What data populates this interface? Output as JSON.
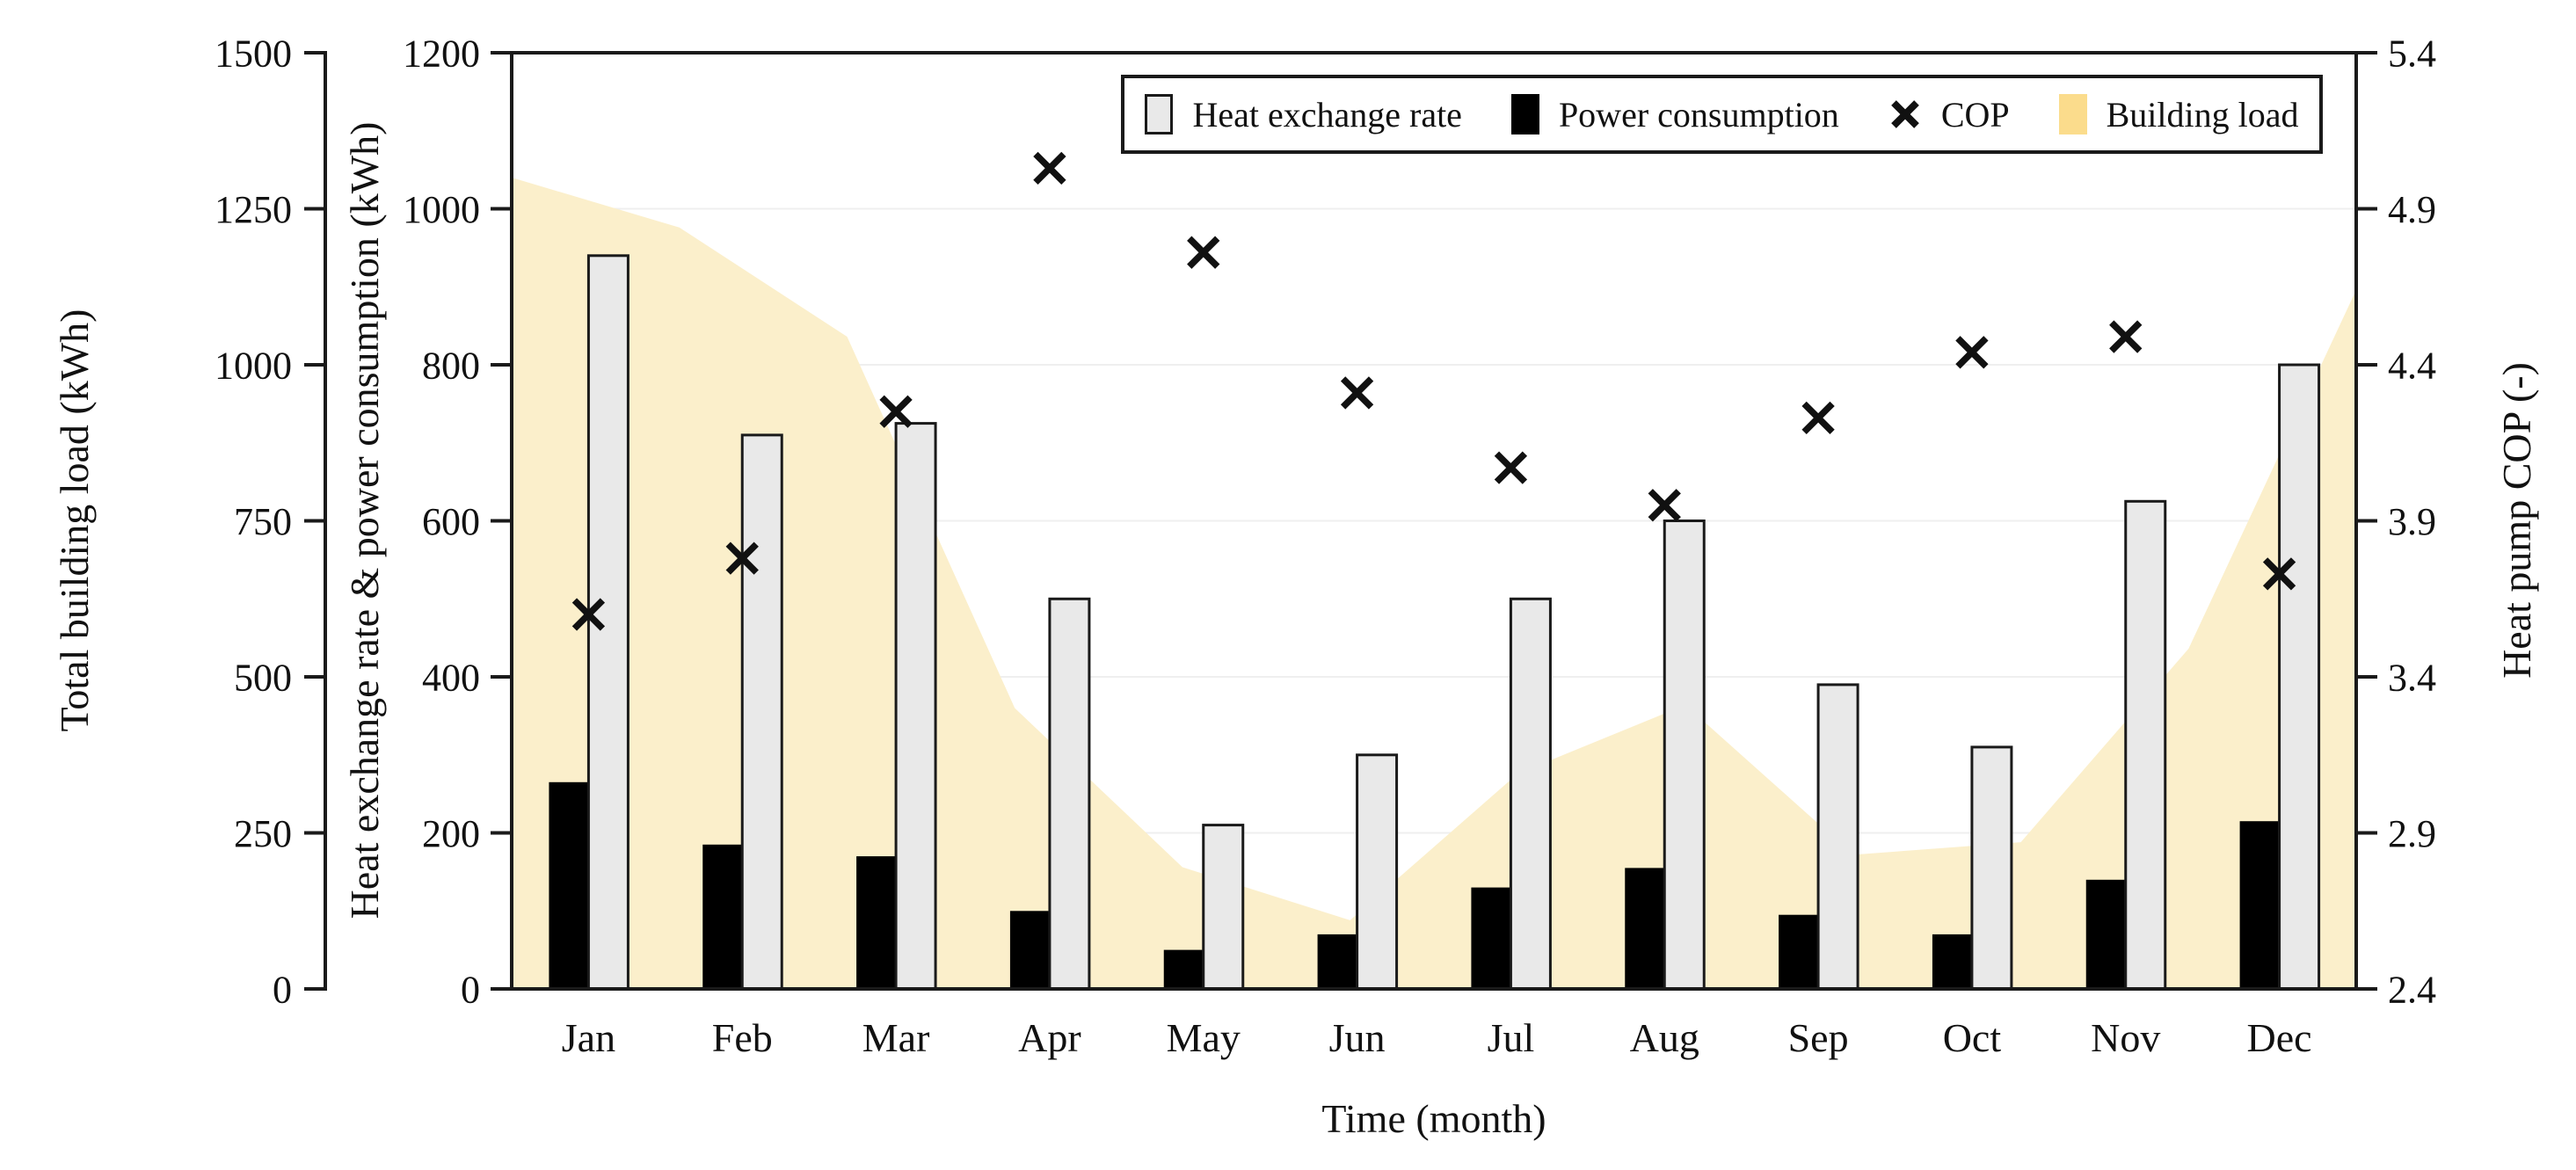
{
  "chart_data": {
    "type": "combo",
    "categories": [
      "Jan",
      "Feb",
      "Mar",
      "Apr",
      "May",
      "Jun",
      "Jul",
      "Aug",
      "Sep",
      "Oct",
      "Nov",
      "Dec"
    ],
    "series": [
      {
        "name": "Heat exchange rate",
        "type": "bar",
        "axis": "kwh",
        "color": "#e9e9e9",
        "border_color": "#1a1a1a",
        "values": [
          940,
          710,
          725,
          500,
          210,
          300,
          500,
          600,
          390,
          310,
          625,
          800
        ]
      },
      {
        "name": "Power consumption",
        "type": "bar",
        "axis": "kwh",
        "color": "#000000",
        "border_color": "#000000",
        "values": [
          265,
          185,
          170,
          100,
          50,
          70,
          130,
          155,
          95,
          70,
          140,
          215
        ]
      },
      {
        "name": "COP",
        "type": "scatter",
        "marker": "x",
        "axis": "cop",
        "color": "#111111",
        "values": [
          3.6,
          3.78,
          4.25,
          5.03,
          4.76,
          4.31,
          4.07,
          3.95,
          4.23,
          4.44,
          4.49,
          3.73
        ]
      },
      {
        "name": "Building load",
        "type": "area",
        "axis": "load",
        "x_layout": "edge-to-edge",
        "color": "#fbefcb",
        "legend_color": "#fbdc8c",
        "values": [
          1300,
          1220,
          1045,
          450,
          195,
          110,
          345,
          455,
          215,
          235,
          545,
          1120
        ]
      }
    ],
    "axes": {
      "load": {
        "label": "Total building load (kWh)",
        "min": 0,
        "max": 1500,
        "step": 250,
        "ticks": [
          "0",
          "250",
          "500",
          "750",
          "1000",
          "1250",
          "1500"
        ]
      },
      "kwh": {
        "label": "Heat exchange rate & power consumption (kWh)",
        "min": 0,
        "max": 1200,
        "step": 200,
        "ticks": [
          "0",
          "200",
          "400",
          "600",
          "800",
          "1000",
          "1200"
        ]
      },
      "cop": {
        "label": "Heat pump COP (-)",
        "min": 2.4,
        "max": 5.4,
        "step": 0.5,
        "ticks": [
          "2.4",
          "2.9",
          "3.4",
          "3.9",
          "4.4",
          "4.9",
          "5.4"
        ]
      },
      "x": {
        "label": "Time (month)"
      }
    },
    "grid": {
      "color": "#efefef",
      "levels_kwh": [
        200,
        400,
        600,
        800,
        1000
      ]
    },
    "legend": {
      "position": "top-right",
      "items": [
        "Heat exchange rate",
        "Power consumption",
        "COP",
        "Building load"
      ]
    },
    "frame_color": "#1a1a1a"
  }
}
